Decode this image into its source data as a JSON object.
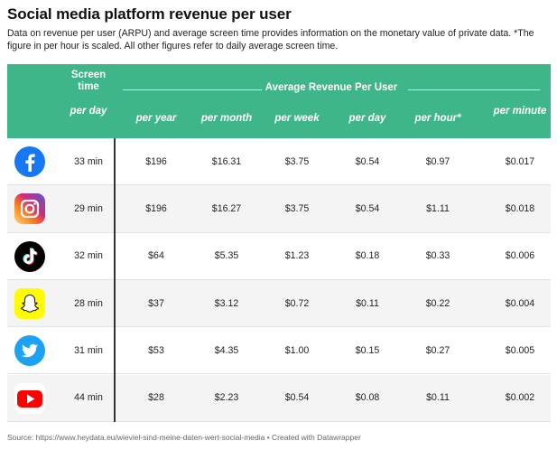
{
  "title": "Social media platform revenue per user",
  "description": "Data on revenue per user (ARPU) and average screen time provides information on the monetary value of private data. *The figure in per hour is scaled. All other figures refer to daily average screen time.",
  "header": {
    "screen_time_top": "Screen time",
    "screen_time_bottom": "per day",
    "group_label": "Average Revenue Per User",
    "columns": [
      "per year",
      "per month",
      "per week",
      "per day",
      "per hour*",
      "per minute"
    ]
  },
  "rows": [
    {
      "platform_icon": "facebook-icon",
      "screen_time": "33 min",
      "values": [
        "$196",
        "$16.31",
        "$3.75",
        "$0.54",
        "$0.97",
        "$0.017"
      ]
    },
    {
      "platform_icon": "instagram-icon",
      "screen_time": "29 min",
      "values": [
        "$196",
        "$16.27",
        "$3.75",
        "$0.54",
        "$1.11",
        "$0.018"
      ]
    },
    {
      "platform_icon": "tiktok-icon",
      "screen_time": "32 min",
      "values": [
        "$64",
        "$5.35",
        "$1.23",
        "$0.18",
        "$0.33",
        "$0.006"
      ]
    },
    {
      "platform_icon": "snapchat-icon",
      "screen_time": "28 min",
      "values": [
        "$37",
        "$3.12",
        "$0.72",
        "$0.11",
        "$0.22",
        "$0.004"
      ]
    },
    {
      "platform_icon": "twitter-icon",
      "screen_time": "31 min",
      "values": [
        "$53",
        "$4.35",
        "$1.00",
        "$0.15",
        "$0.27",
        "$0.005"
      ]
    },
    {
      "platform_icon": "youtube-icon",
      "screen_time": "44 min",
      "values": [
        "$28",
        "$2.23",
        "$0.54",
        "$0.08",
        "$0.11",
        "$0.002"
      ]
    }
  ],
  "colors": {
    "header_bg": "#3fb689",
    "facebook": "#1877f2",
    "instagram": "#d62976",
    "tiktok": "#000000",
    "snapchat": "#fffc00",
    "twitter": "#1da1f2",
    "youtube": "#ff0000"
  },
  "source": "Source: https://www.heydata.eu/wieviel-sind-meine-daten-wert-social-media • Created with Datawrapper"
}
